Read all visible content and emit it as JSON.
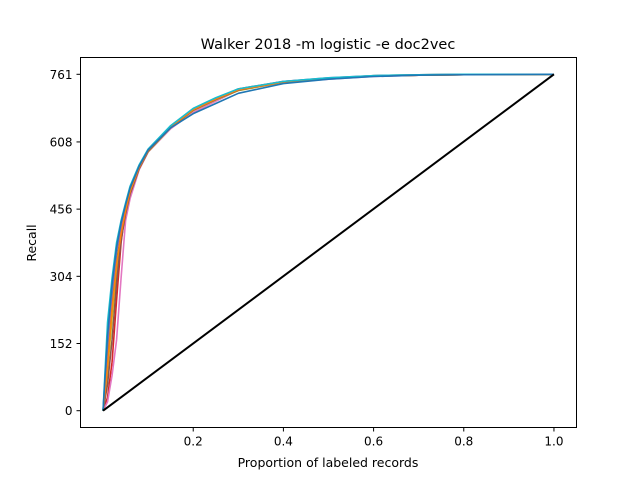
{
  "chart_data": {
    "type": "line",
    "title": "Walker 2018 -m logistic -e doc2vec",
    "xlabel": "Proportion of labeled records",
    "ylabel": "Recall",
    "xlim": [
      -0.05,
      1.05
    ],
    "ylim": [
      -38,
      799
    ],
    "x_ticks": [
      0.2,
      0.4,
      0.6,
      0.8,
      1.0
    ],
    "x_tick_labels": [
      "0.2",
      "0.4",
      "0.6",
      "0.8",
      "1.0"
    ],
    "y_ticks": [
      0,
      152,
      304,
      456,
      608,
      761
    ],
    "y_tick_labels": [
      "0",
      "152",
      "304",
      "456",
      "608",
      "761"
    ],
    "grid": false,
    "legend": "none",
    "series": [
      {
        "color": "#d62728",
        "x": [
          0,
          0.01,
          0.02,
          0.03,
          0.04,
          0.05,
          0.06,
          0.08,
          0.1,
          0.15,
          0.2,
          0.25,
          0.3,
          0.4,
          0.5,
          0.6,
          0.7,
          0.8,
          1.0
        ],
        "y": [
          0,
          30,
          110,
          250,
          380,
          460,
          505,
          555,
          590,
          640,
          680,
          705,
          728,
          745,
          752,
          757,
          759,
          760,
          761
        ]
      },
      {
        "color": "#e377c2",
        "x": [
          0,
          0.01,
          0.02,
          0.03,
          0.04,
          0.05,
          0.06,
          0.08,
          0.1,
          0.15,
          0.2,
          0.25,
          0.3,
          0.4,
          0.5,
          0.6,
          0.7,
          0.8,
          1.0
        ],
        "y": [
          0,
          20,
          80,
          160,
          300,
          430,
          480,
          545,
          585,
          638,
          675,
          700,
          725,
          742,
          750,
          756,
          759,
          760,
          761
        ]
      },
      {
        "color": "#2ca02c",
        "x": [
          0,
          0.01,
          0.02,
          0.03,
          0.04,
          0.05,
          0.06,
          0.08,
          0.1,
          0.15,
          0.2,
          0.25,
          0.3,
          0.4,
          0.5,
          0.6,
          0.7,
          0.8,
          1.0
        ],
        "y": [
          0,
          120,
          250,
          340,
          400,
          450,
          495,
          550,
          588,
          642,
          682,
          706,
          726,
          744,
          752,
          758,
          760,
          761,
          761
        ]
      },
      {
        "color": "#bcbd22",
        "x": [
          0,
          0.01,
          0.02,
          0.03,
          0.04,
          0.05,
          0.06,
          0.08,
          0.1,
          0.15,
          0.2,
          0.25,
          0.3,
          0.4,
          0.5,
          0.6,
          0.7,
          0.8,
          1.0
        ],
        "y": [
          0,
          90,
          210,
          320,
          395,
          448,
          492,
          548,
          586,
          640,
          679,
          703,
          724,
          743,
          751,
          757,
          759,
          760,
          761
        ]
      },
      {
        "color": "#9467bd",
        "x": [
          0,
          0.01,
          0.02,
          0.03,
          0.04,
          0.05,
          0.06,
          0.08,
          0.1,
          0.15,
          0.2,
          0.25,
          0.3,
          0.4,
          0.5,
          0.6,
          0.7,
          0.8,
          1.0
        ],
        "y": [
          0,
          150,
          270,
          360,
          415,
          460,
          500,
          552,
          590,
          643,
          683,
          707,
          727,
          745,
          753,
          758,
          760,
          761,
          761
        ]
      },
      {
        "color": "#8c564b",
        "x": [
          0,
          0.01,
          0.02,
          0.03,
          0.04,
          0.05,
          0.06,
          0.08,
          0.1,
          0.15,
          0.2,
          0.25,
          0.3,
          0.4,
          0.5,
          0.6,
          0.7,
          0.8,
          1.0
        ],
        "y": [
          0,
          60,
          160,
          290,
          385,
          445,
          490,
          547,
          587,
          641,
          680,
          704,
          725,
          744,
          752,
          757,
          759,
          760,
          761
        ]
      },
      {
        "color": "#ff7f0e",
        "x": [
          0,
          0.01,
          0.02,
          0.03,
          0.04,
          0.05,
          0.06,
          0.08,
          0.1,
          0.15,
          0.2,
          0.25,
          0.3,
          0.4,
          0.5,
          0.6,
          0.7,
          0.8,
          1.0
        ],
        "y": [
          0,
          100,
          230,
          330,
          400,
          452,
          496,
          550,
          589,
          642,
          681,
          705,
          726,
          744,
          752,
          757,
          759,
          760,
          761
        ]
      },
      {
        "color": "#17becf",
        "x": [
          0,
          0.01,
          0.02,
          0.03,
          0.04,
          0.05,
          0.06,
          0.08,
          0.1,
          0.15,
          0.2,
          0.25,
          0.3,
          0.4,
          0.5,
          0.6,
          0.7,
          0.8,
          1.0
        ],
        "y": [
          0,
          200,
          300,
          380,
          430,
          470,
          508,
          556,
          592,
          645,
          684,
          708,
          728,
          745,
          753,
          758,
          760,
          761,
          761
        ]
      },
      {
        "color": "#1f77b4",
        "x": [
          0,
          0.01,
          0.02,
          0.03,
          0.04,
          0.05,
          0.06,
          0.08,
          0.1,
          0.15,
          0.2,
          0.25,
          0.3,
          0.4,
          0.5,
          0.6,
          0.7,
          0.8,
          1.0
        ],
        "y": [
          0,
          170,
          285,
          370,
          425,
          466,
          504,
          553,
          590,
          640,
          672,
          695,
          718,
          740,
          750,
          756,
          759,
          760,
          761
        ]
      },
      {
        "color": "#000000",
        "x": [
          0,
          1.0
        ],
        "y": [
          0,
          761
        ]
      }
    ]
  }
}
